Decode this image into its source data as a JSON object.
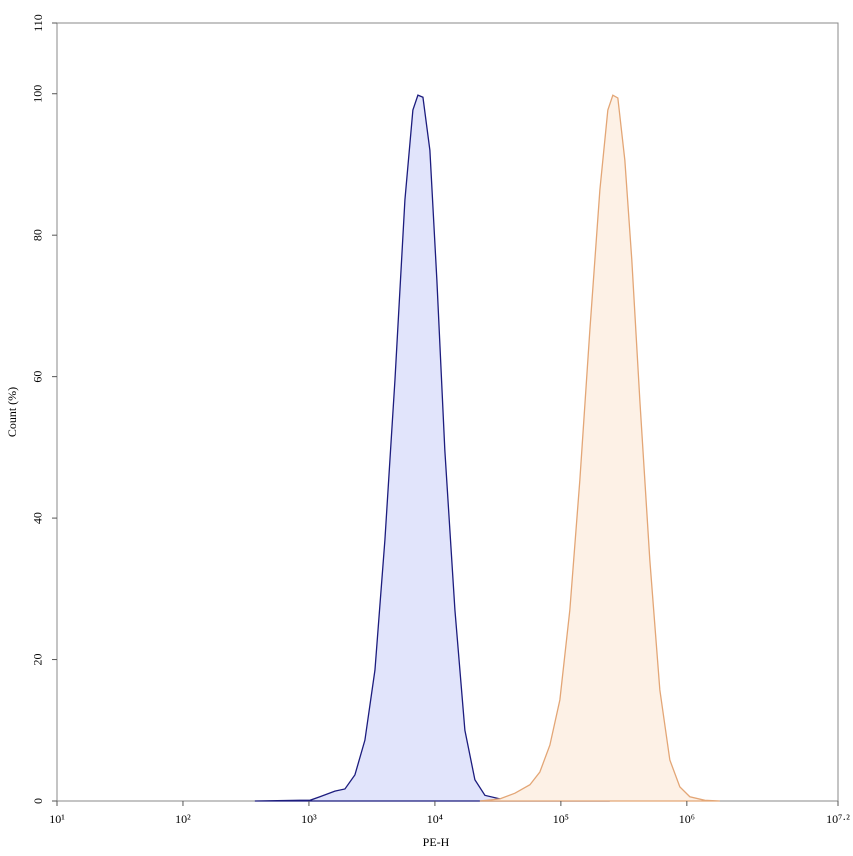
{
  "chart_data": {
    "type": "area",
    "xlabel": "PE-H",
    "ylabel": "Count (%)",
    "xscale": "log",
    "xlim": [
      10,
      15848932
    ],
    "ylim": [
      0,
      110
    ],
    "xticks": [
      {
        "value": 10,
        "label": "10¹"
      },
      {
        "value": 100,
        "label": "10²"
      },
      {
        "value": 1000,
        "label": "10³"
      },
      {
        "value": 10000,
        "label": "10⁴"
      },
      {
        "value": 100000,
        "label": "10⁵"
      },
      {
        "value": 1000000,
        "label": "10⁶"
      },
      {
        "value": 15848932,
        "label": "10⁷·²"
      }
    ],
    "yticks": [
      0,
      20,
      40,
      60,
      80,
      100,
      110
    ],
    "series": [
      {
        "color": "#1c1c7e",
        "fill": "#e1e4fb",
        "x": [
          372,
          849,
          1019,
          1222,
          1607,
          1931,
          2318,
          2782,
          3342,
          4009,
          4817,
          5781,
          6687,
          7330,
          8036,
          9125,
          10370,
          11990,
          14420,
          17300,
          20770,
          24950,
          32800,
          47300,
          68100,
          98200,
          244800
        ],
        "values": [
          0,
          0.1,
          0.1,
          0.6,
          1.4,
          1.7,
          3.7,
          8.6,
          18.5,
          36.9,
          59.5,
          85,
          97.7,
          99.8,
          99.5,
          92,
          73.6,
          49.6,
          27,
          10,
          3,
          0.8,
          0.3,
          0.1,
          0.4,
          0.1,
          0
        ]
      },
      {
        "color": "#e3a676",
        "fill": "#fdf1e6",
        "x": [
          22750,
          32800,
          43200,
          56800,
          68100,
          81800,
          98200,
          117800,
          141500,
          169900,
          204000,
          236000,
          258600,
          283300,
          322000,
          365700,
          423400,
          508200,
          610500,
          732900,
          879700,
          1056000,
          1390000,
          1828000
        ],
        "values": [
          0,
          0.3,
          1.1,
          2.3,
          4.1,
          7.9,
          14.3,
          27,
          45.4,
          66.6,
          86.4,
          97.7,
          99.8,
          99.4,
          90.6,
          76.5,
          56.7,
          34.1,
          15.7,
          5.8,
          2,
          0.6,
          0.1,
          0
        ]
      }
    ]
  }
}
